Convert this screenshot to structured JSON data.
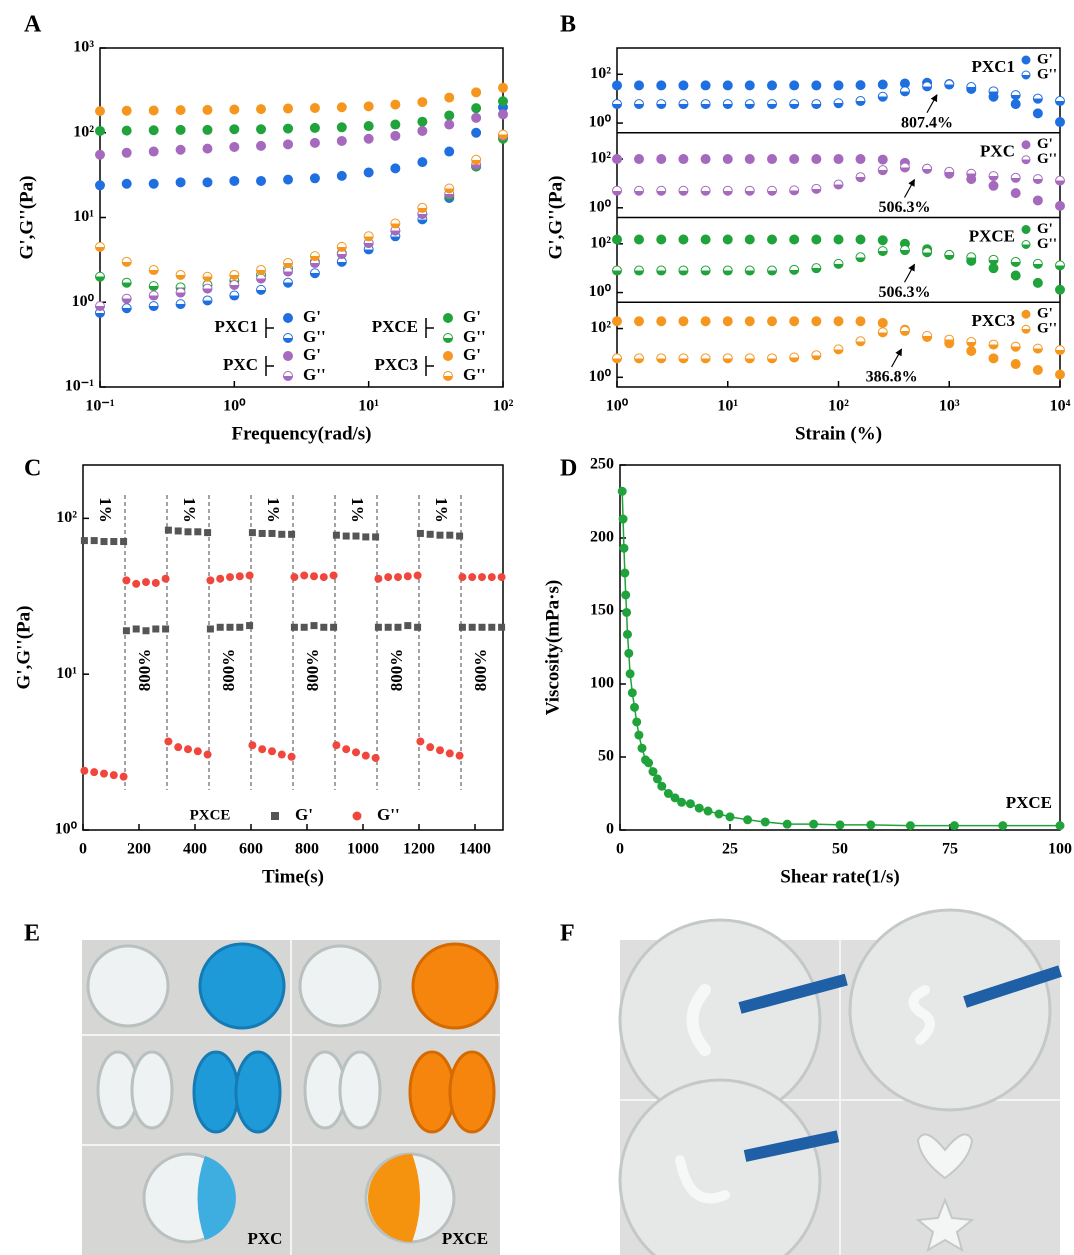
{
  "chart_data": [
    {
      "type": "scatter",
      "panel": "A",
      "xlabel": "Frequency(rad/s)",
      "ylabel": "G',G''(Pa)",
      "xscale": "log",
      "yscale": "log",
      "xlim": [
        0.1,
        100
      ],
      "ylim": [
        0.1,
        1000
      ],
      "xticks": [
        {
          "value": 0.1,
          "label": "10⁻¹"
        },
        {
          "value": 1,
          "label": "10⁰"
        },
        {
          "value": 10,
          "label": "10¹"
        },
        {
          "value": 100,
          "label": "10²"
        }
      ],
      "yticks": [
        {
          "value": 0.1,
          "label": "10⁻¹"
        },
        {
          "value": 1,
          "label": "10⁰"
        },
        {
          "value": 10,
          "label": "10¹"
        },
        {
          "value": 100,
          "label": "10²"
        },
        {
          "value": 1000,
          "label": "10³"
        }
      ],
      "x": [
        0.1,
        0.158,
        0.251,
        0.398,
        0.631,
        1,
        1.58,
        2.51,
        3.98,
        6.31,
        10,
        15.8,
        25.1,
        39.8,
        63.1,
        100
      ],
      "groups": [
        {
          "name": "PXC1",
          "color": "#1f6fe0",
          "series": [
            {
              "name": "G'",
              "marker": "filled",
              "values": [
                24,
                25,
                25,
                26,
                26,
                27,
                27,
                28,
                29,
                31,
                34,
                38,
                45,
                60,
                100,
                200
              ]
            },
            {
              "name": "G''",
              "marker": "half",
              "values": [
                0.75,
                0.85,
                0.9,
                0.95,
                1.05,
                1.2,
                1.4,
                1.7,
                2.2,
                3,
                4.2,
                6,
                9.5,
                17,
                40,
                90
              ]
            }
          ]
        },
        {
          "name": "PXCE",
          "color": "#1fa33a",
          "series": [
            {
              "name": "G'",
              "marker": "filled",
              "values": [
                105,
                106,
                107,
                108,
                108,
                110,
                110,
                112,
                114,
                116,
                120,
                125,
                135,
                160,
                195,
                235
              ]
            },
            {
              "name": "G''",
              "marker": "half",
              "values": [
                2,
                1.7,
                1.55,
                1.5,
                1.6,
                1.8,
                2.1,
                2.5,
                3,
                3.8,
                5,
                7,
                11,
                18,
                40,
                85
              ]
            }
          ]
        },
        {
          "name": "PXC",
          "color": "#a569bd",
          "series": [
            {
              "name": "G'",
              "marker": "filled",
              "values": [
                55,
                58,
                60,
                63,
                65,
                68,
                70,
                73,
                76,
                80,
                85,
                92,
                105,
                125,
                150,
                165
              ]
            },
            {
              "name": "G''",
              "marker": "half",
              "values": [
                0.9,
                1.1,
                1.2,
                1.3,
                1.45,
                1.6,
                1.9,
                2.3,
                2.9,
                3.7,
                5,
                7,
                11,
                19,
                42,
                92
              ]
            }
          ]
        },
        {
          "name": "PXC3",
          "color": "#f5961e",
          "series": [
            {
              "name": "G'",
              "marker": "filled",
              "values": [
                180,
                182,
                183,
                185,
                186,
                188,
                190,
                193,
                196,
                200,
                205,
                215,
                230,
                260,
                300,
                340
              ]
            },
            {
              "name": "G''",
              "marker": "half",
              "values": [
                4.5,
                3,
                2.4,
                2.1,
                2,
                2.1,
                2.4,
                2.9,
                3.5,
                4.5,
                6,
                8.5,
                13,
                22,
                48,
                95
              ]
            }
          ]
        }
      ]
    },
    {
      "type": "scatter",
      "panel": "B",
      "xlabel": "Strain (%)",
      "ylabel": "G',G''(Pa)",
      "xscale": "log",
      "yscale": "log",
      "xlim": [
        1,
        10000
      ],
      "ylim": [
        0.4,
        1200
      ],
      "xticks": [
        {
          "value": 1,
          "label": "10⁰"
        },
        {
          "value": 10,
          "label": "10¹"
        },
        {
          "value": 100,
          "label": "10²"
        },
        {
          "value": 1000,
          "label": "10³"
        },
        {
          "value": 10000,
          "label": "10⁴"
        }
      ],
      "yticks": [
        {
          "value": 1,
          "label": "10⁰"
        },
        {
          "value": 100,
          "label": "10²"
        }
      ],
      "x": [
        1,
        1.58,
        2.51,
        3.98,
        6.31,
        10,
        15.8,
        25.1,
        39.8,
        63.1,
        100,
        158,
        251,
        398,
        631,
        1000,
        1580,
        2510,
        3980,
        6310,
        10000
      ],
      "subplots": [
        {
          "name": "PXC1",
          "color": "#1f6fe0",
          "crossover": {
            "value": 807.4,
            "label": "807.4%"
          },
          "series": [
            {
              "name": "G'",
              "marker": "filled",
              "values": [
                35,
                35,
                35,
                35,
                35,
                35,
                35,
                35,
                35,
                35,
                35,
                36,
                38,
                42,
                45,
                40,
                25,
                12,
                6,
                2.5,
                1.1
              ]
            },
            {
              "name": "G''",
              "marker": "half",
              "values": [
                6,
                6,
                6,
                6,
                6,
                6,
                6,
                6,
                6,
                6,
                6.5,
                8,
                12,
                20,
                32,
                38,
                30,
                20,
                14,
                10,
                8
              ]
            }
          ]
        },
        {
          "name": "PXC",
          "color": "#a569bd",
          "crossover": {
            "value": 506.3,
            "label": "506.3%"
          },
          "series": [
            {
              "name": "G'",
              "marker": "filled",
              "values": [
                100,
                100,
                100,
                100,
                100,
                100,
                100,
                100,
                100,
                100,
                100,
                100,
                95,
                70,
                40,
                25,
                15,
                8,
                4,
                2,
                1.2
              ]
            },
            {
              "name": "G''",
              "marker": "half",
              "values": [
                5,
                5,
                5,
                5,
                5,
                5,
                5,
                5,
                5.2,
                6,
                9,
                18,
                35,
                45,
                40,
                30,
                25,
                20,
                17,
                15,
                13
              ]
            }
          ]
        },
        {
          "name": "PXCE",
          "color": "#1fa33a",
          "crossover": {
            "value": 506.3,
            "label": "506.3%"
          },
          "series": [
            {
              "name": "G'",
              "marker": "filled",
              "values": [
                150,
                150,
                150,
                150,
                150,
                150,
                150,
                150,
                150,
                150,
                150,
                150,
                140,
                100,
                60,
                35,
                20,
                10,
                5,
                2.5,
                1.3
              ]
            },
            {
              "name": "G''",
              "marker": "half",
              "values": [
                8,
                8,
                8,
                8,
                8,
                8,
                8,
                8,
                8.5,
                10,
                15,
                28,
                50,
                55,
                45,
                35,
                28,
                22,
                18,
                15,
                13
              ]
            }
          ]
        },
        {
          "name": "PXC3",
          "color": "#f5961e",
          "crossover": {
            "value": 386.8,
            "label": "386.8%"
          },
          "series": [
            {
              "name": "G'",
              "marker": "filled",
              "values": [
                200,
                200,
                200,
                200,
                200,
                200,
                200,
                200,
                200,
                200,
                200,
                200,
                170,
                90,
                45,
                25,
                12,
                6,
                3.5,
                2,
                1.3
              ]
            },
            {
              "name": "G''",
              "marker": "half",
              "values": [
                6,
                6,
                6,
                6,
                6,
                6,
                6,
                6,
                6.5,
                8,
                14,
                30,
                70,
                80,
                50,
                35,
                28,
                22,
                18,
                15,
                13
              ]
            }
          ]
        }
      ]
    },
    {
      "type": "scatter",
      "panel": "C",
      "xlabel": "Time(s)",
      "ylabel": "G',G''(Pa)",
      "yscale": "log",
      "legend_title": "PXCE",
      "xlim": [
        0,
        1500
      ],
      "ylim": [
        1,
        220
      ],
      "xticks": [
        0,
        200,
        400,
        600,
        800,
        1000,
        1200,
        1400
      ],
      "yticks": [
        {
          "value": 1,
          "label": "10⁰"
        },
        {
          "value": 10,
          "label": "10¹"
        },
        {
          "value": 100,
          "label": "10²"
        }
      ],
      "switch_times": [
        150,
        300,
        450,
        600,
        750,
        900,
        1050,
        1200,
        1350
      ],
      "strain_labels": [
        "1%",
        "800%",
        "1%",
        "800%",
        "1%",
        "800%",
        "1%",
        "800%",
        "1%",
        "800%"
      ],
      "x": [
        5,
        40,
        75,
        110,
        145,
        155,
        190,
        225,
        260,
        295,
        305,
        340,
        375,
        410,
        445,
        455,
        490,
        525,
        560,
        595,
        605,
        640,
        675,
        710,
        745,
        755,
        790,
        825,
        860,
        895,
        905,
        940,
        975,
        1010,
        1045,
        1055,
        1090,
        1125,
        1160,
        1195,
        1205,
        1240,
        1275,
        1310,
        1345,
        1355,
        1390,
        1425,
        1460,
        1495
      ],
      "series": [
        {
          "name": "G'",
          "marker": "square",
          "color": "#555555",
          "values": [
            72,
            72,
            71,
            71,
            71,
            19,
            19.5,
            19,
            19.5,
            19.5,
            84,
            83,
            82,
            82,
            81,
            19.5,
            20,
            20,
            20,
            20.5,
            81,
            80,
            80,
            79,
            79,
            20,
            20,
            20.5,
            20,
            20,
            78,
            77,
            77,
            76,
            76,
            20,
            20,
            20,
            20.5,
            20,
            80,
            79,
            78,
            78,
            77,
            20,
            20,
            20,
            20,
            20
          ]
        },
        {
          "name": "G''",
          "marker": "filled",
          "color": "#f0463c",
          "values": [
            2.4,
            2.35,
            2.3,
            2.25,
            2.2,
            40,
            38,
            39,
            38.5,
            41,
            3.7,
            3.4,
            3.3,
            3.2,
            3.05,
            40,
            41,
            42,
            42.5,
            43,
            3.5,
            3.3,
            3.2,
            3.05,
            2.95,
            42,
            43,
            42.5,
            42,
            43,
            3.5,
            3.3,
            3.15,
            3,
            2.9,
            41,
            42,
            42,
            42.5,
            43,
            3.7,
            3.4,
            3.25,
            3.1,
            3,
            42,
            42,
            42,
            42,
            42
          ]
        }
      ]
    },
    {
      "type": "line",
      "panel": "D",
      "xlabel": "Shear rate(1/s)",
      "ylabel": "Viscosity(mPa·s)",
      "label": "PXCE",
      "color": "#1fa33a",
      "xlim": [
        0,
        100
      ],
      "ylim": [
        0,
        250
      ],
      "xticks": [
        0,
        25,
        50,
        75,
        100
      ],
      "yticks": [
        0,
        50,
        100,
        150,
        200,
        250
      ],
      "x": [
        0.5,
        0.7,
        0.9,
        1.1,
        1.3,
        1.5,
        1.7,
        2,
        2.3,
        2.8,
        3.3,
        3.8,
        4.3,
        5,
        5.8,
        6.5,
        7.5,
        8.5,
        9.5,
        11,
        12.5,
        14,
        16,
        18,
        20,
        22.5,
        25,
        29,
        33,
        38,
        44,
        50,
        57,
        66,
        76,
        87,
        100
      ],
      "values": [
        232,
        213,
        193,
        176,
        161,
        149,
        134,
        121,
        107,
        94,
        84,
        74,
        65,
        56,
        48,
        46,
        40,
        35,
        30,
        25,
        22,
        19,
        18,
        15,
        13,
        11,
        9,
        7,
        5.5,
        4,
        4,
        3.5,
        3.5,
        3,
        3,
        3,
        3
      ]
    }
  ],
  "figures": [
    {
      "panel": "E",
      "captions": [
        "PXC",
        "PXCE"
      ]
    },
    {
      "panel": "F"
    }
  ]
}
